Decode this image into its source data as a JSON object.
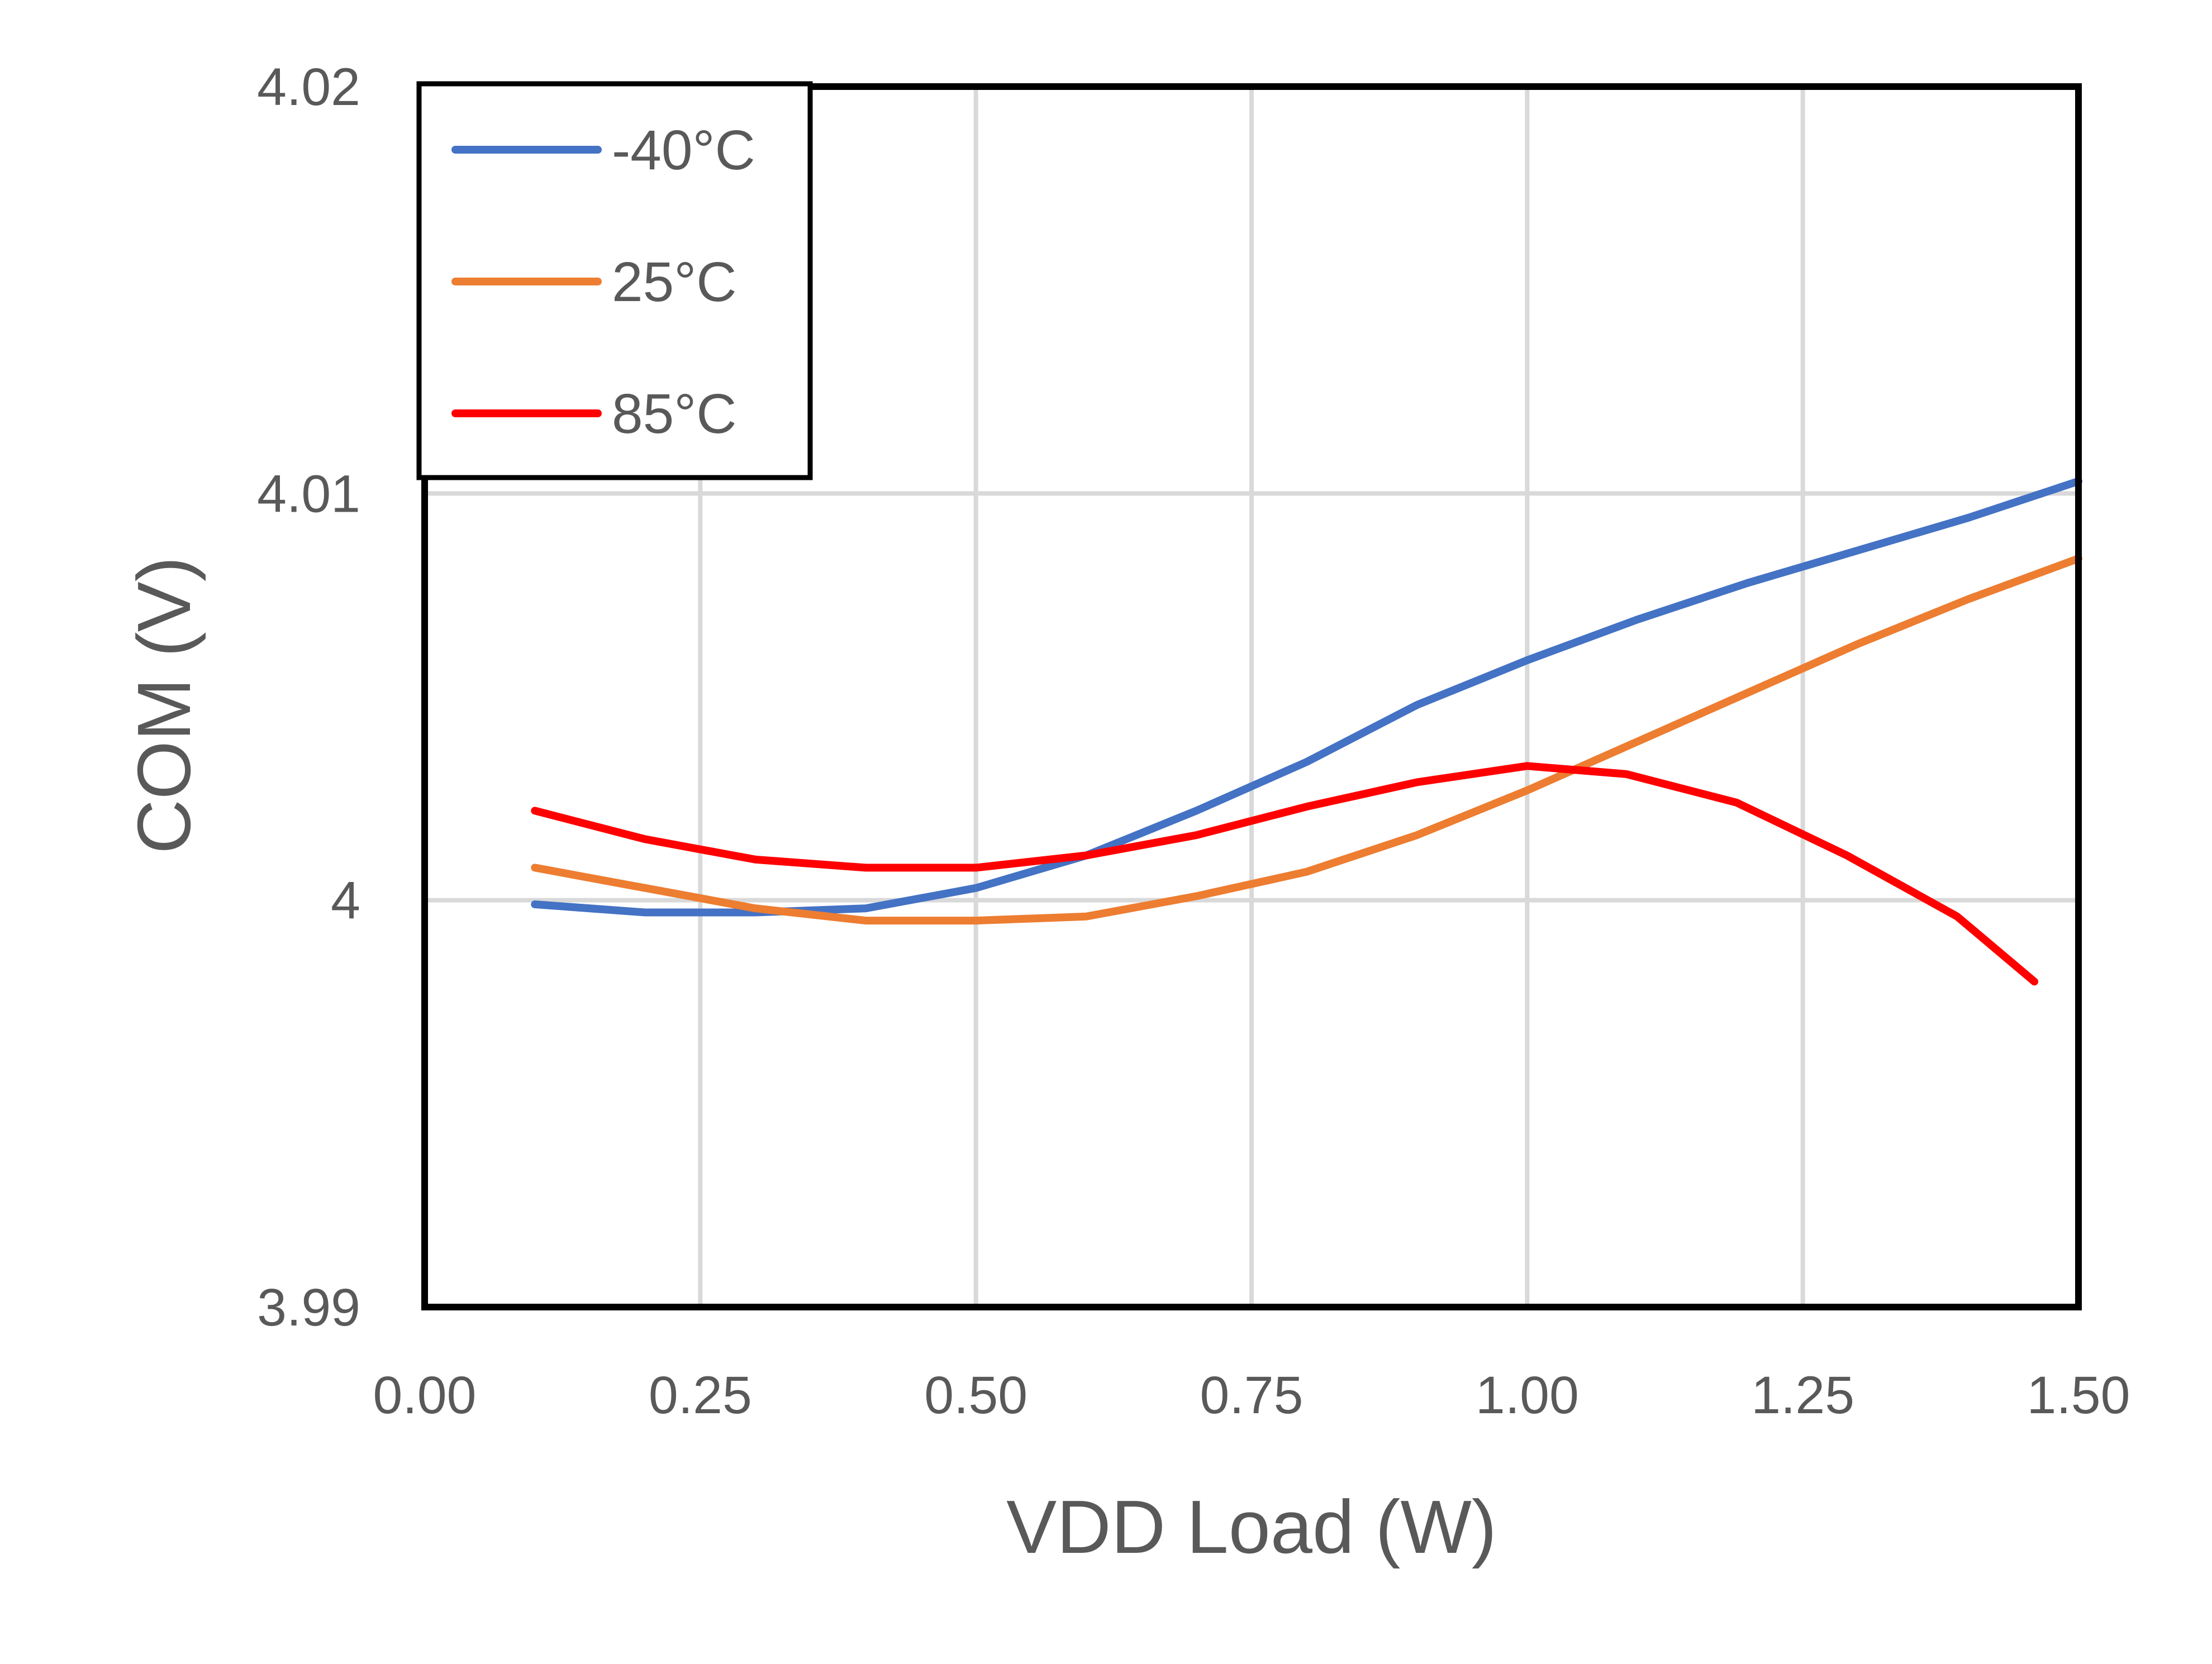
{
  "chart_data": {
    "type": "line",
    "title": "",
    "xlabel": "VDD Load (W)",
    "ylabel": "COM (V)",
    "xlim": [
      0,
      1.5
    ],
    "ylim": [
      3.99,
      4.02
    ],
    "x_ticks": [
      0,
      0.25,
      0.5,
      0.75,
      1.0,
      1.25,
      1.5
    ],
    "x_tick_labels": [
      "0.00",
      "0.25",
      "0.50",
      "0.75",
      "1.00",
      "1.25",
      "1.50"
    ],
    "y_ticks": [
      3.99,
      4.0,
      4.01,
      4.02
    ],
    "y_tick_labels": [
      "3.99",
      "4",
      "4.01",
      "4.02"
    ],
    "grid": true,
    "legend_position": "top-left",
    "series": [
      {
        "name": "-40°C",
        "color": "#4472C4",
        "x": [
          0.1,
          0.2,
          0.3,
          0.4,
          0.5,
          0.6,
          0.7,
          0.8,
          0.9,
          1.0,
          1.1,
          1.2,
          1.3,
          1.4,
          1.5
        ],
        "y": [
          3.9999,
          3.9997,
          3.9997,
          3.9998,
          4.0003,
          4.0011,
          4.0022,
          4.0034,
          4.0048,
          4.0059,
          4.0069,
          4.0078,
          4.0086,
          4.0094,
          4.0103
        ]
      },
      {
        "name": "25°C",
        "color": "#ED7D31",
        "x": [
          0.1,
          0.2,
          0.3,
          0.4,
          0.5,
          0.6,
          0.7,
          0.8,
          0.9,
          1.0,
          1.1,
          1.2,
          1.3,
          1.4,
          1.5
        ],
        "y": [
          4.0008,
          4.0003,
          3.9998,
          3.9995,
          3.9995,
          3.9996,
          4.0001,
          4.0007,
          4.0016,
          4.0027,
          4.0039,
          4.0051,
          4.0063,
          4.0074,
          4.0084
        ]
      },
      {
        "name": "85°C",
        "color": "#FF0000",
        "x": [
          0.1,
          0.2,
          0.3,
          0.4,
          0.5,
          0.6,
          0.7,
          0.8,
          0.9,
          1.0,
          1.09,
          1.19,
          1.29,
          1.39,
          1.46
        ],
        "y": [
          4.0022,
          4.0015,
          4.001,
          4.0008,
          4.0008,
          4.0011,
          4.0016,
          4.0023,
          4.0029,
          4.0033,
          4.0031,
          4.0024,
          4.0011,
          3.9996,
          3.998
        ]
      }
    ]
  }
}
